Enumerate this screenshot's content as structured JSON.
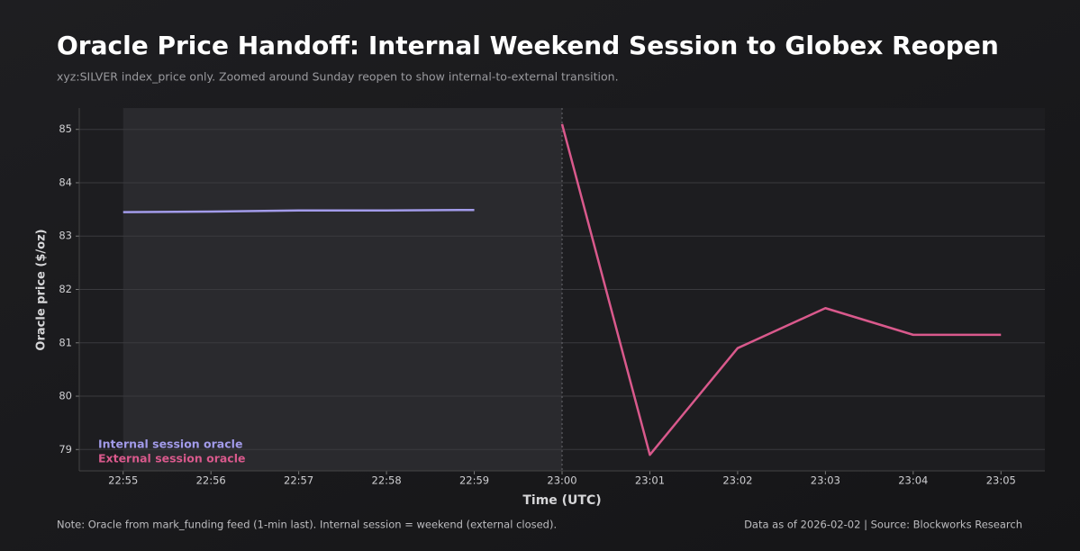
{
  "chart_data": {
    "type": "line",
    "title": "Oracle Price Handoff: Internal Weekend Session to Globex Reopen",
    "subtitle": "xyz:SILVER index_price only. Zoomed around Sunday reopen to show internal-to-external transition.",
    "x_label": "Time (UTC)",
    "y_label": "Oracle price ($/oz)",
    "categories": [
      "22:55",
      "22:56",
      "22:57",
      "22:58",
      "22:59",
      "23:00",
      "23:01",
      "23:02",
      "23:03",
      "23:04",
      "23:05"
    ],
    "series": [
      {
        "name": "Internal session oracle",
        "color": "#a29bea",
        "values": [
          83.45,
          83.46,
          83.48,
          83.48,
          83.49,
          null,
          null,
          null,
          null,
          null,
          null
        ]
      },
      {
        "name": "External session oracle",
        "color": "#d9598c",
        "values": [
          null,
          null,
          null,
          null,
          null,
          85.1,
          78.9,
          80.9,
          81.65,
          81.15,
          81.15
        ]
      }
    ],
    "ylim": [
      78.6,
      85.4
    ],
    "yticks": [
      79,
      80,
      81,
      82,
      83,
      84,
      85
    ],
    "grid": true,
    "legend": "lower left",
    "note": "Note: Oracle from mark_funding feed (1-min last). Internal session = weekend (external closed).",
    "source": "Data as of 2026-02-02 | Source: Blockworks Research"
  }
}
